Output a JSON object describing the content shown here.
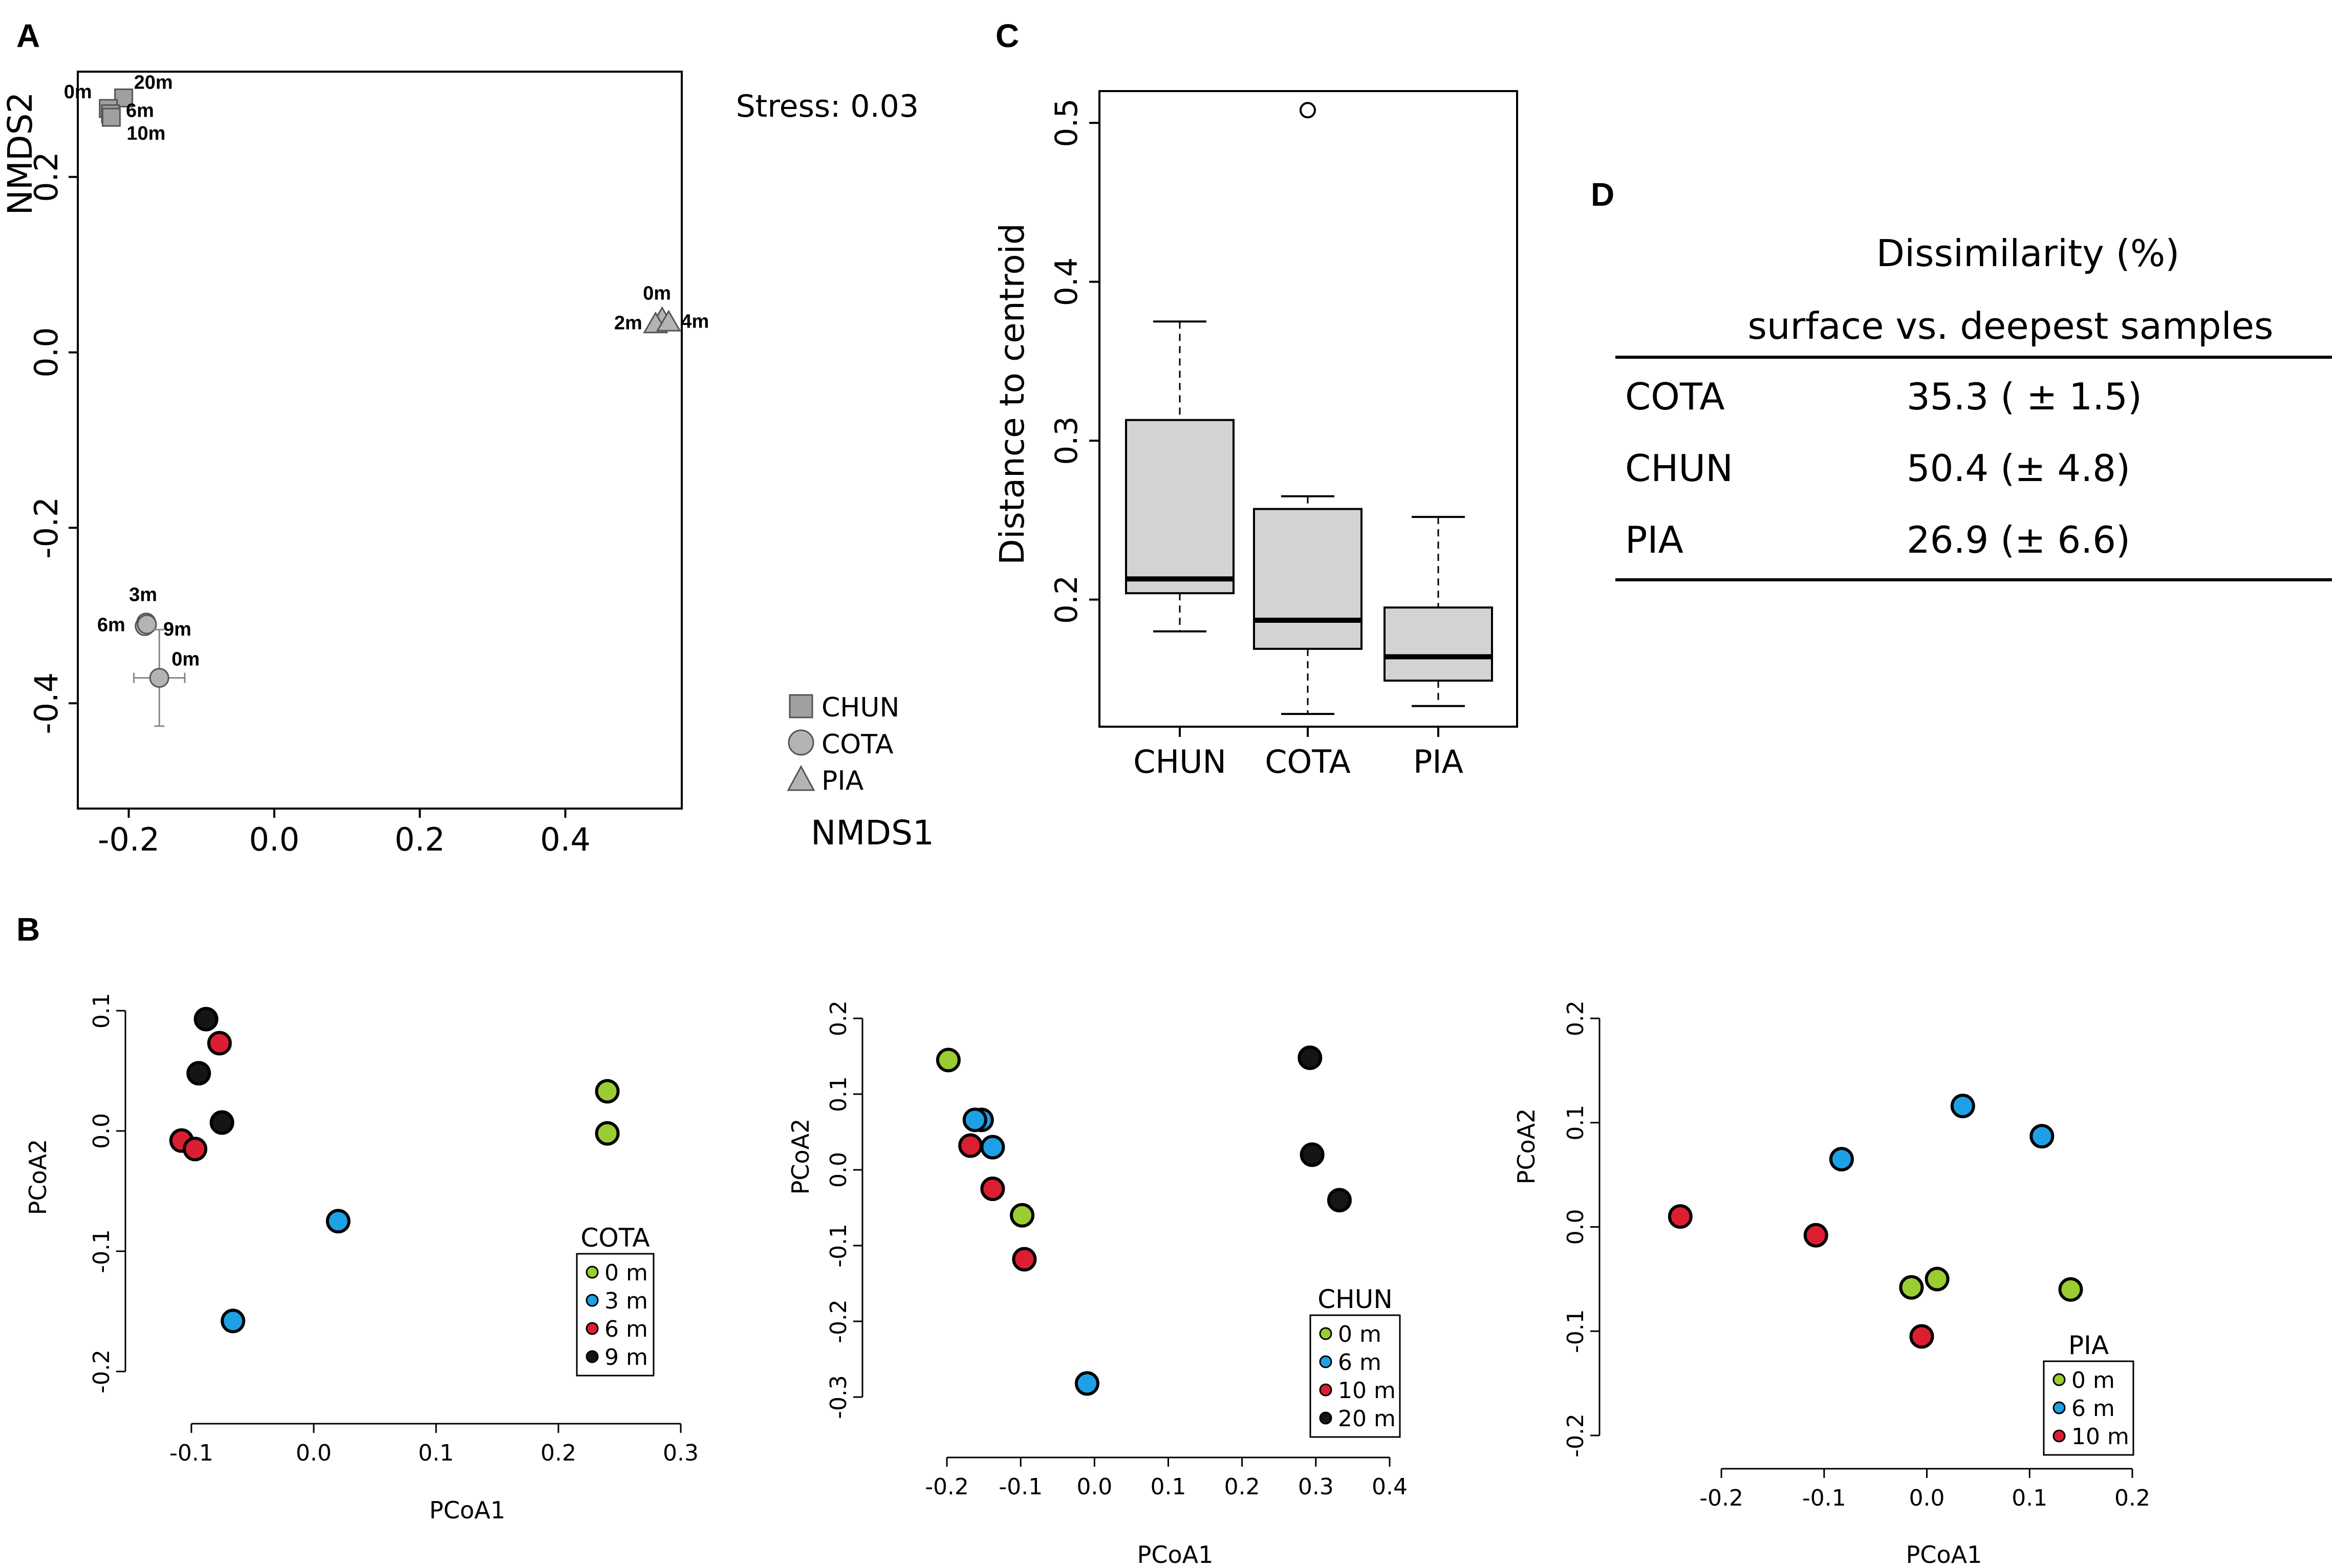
{
  "colors": {
    "depth_0": "#9acd32",
    "depth_mid": "#1ea0e6",
    "depth_red": "#dc1e32",
    "depth_deep": "#151515",
    "marker_gray": "#b4b4b4",
    "box_fill": "#d3d3d3"
  },
  "panels": {
    "A": {
      "letter": "A"
    },
    "B": {
      "letter": "B"
    },
    "C": {
      "letter": "C"
    },
    "D": {
      "letter": "D"
    }
  },
  "chart_data": [
    {
      "id": "A",
      "type": "scatter",
      "title": "",
      "xlabel": "NMDS1",
      "ylabel": "NMDS2",
      "xlim": [
        -0.27,
        0.56
      ],
      "ylim": [
        -0.52,
        0.32
      ],
      "xticks": [
        -0.2,
        0.0,
        0.2,
        0.4
      ],
      "xtick_labels": [
        "-0.2",
        "0.0",
        "0.2",
        "0.4"
      ],
      "yticks": [
        -0.4,
        -0.2,
        0.0,
        0.2
      ],
      "ytick_labels": [
        "-0.4",
        "-0.2",
        "0.0",
        "0.2"
      ],
      "annotation": "Stress: 0.03",
      "legend": {
        "placement": "bottom-right",
        "entries": [
          {
            "label": "CHUN",
            "shape": "square"
          },
          {
            "label": "COTA",
            "shape": "circle"
          },
          {
            "label": "PIA",
            "shape": "triangle"
          }
        ]
      },
      "series": [
        {
          "name": "CHUN",
          "shape": "square",
          "points": [
            {
              "label": "20m",
              "x": -0.207,
              "y": 0.29,
              "xerr": 0.006,
              "yerr": 0.006
            },
            {
              "label": "0m",
              "x": -0.228,
              "y": 0.278,
              "xerr": 0.004,
              "yerr": 0.004
            },
            {
              "label": "6m",
              "x": -0.225,
              "y": 0.272,
              "xerr": 0.004,
              "yerr": 0.004
            },
            {
              "label": "10m",
              "x": -0.224,
              "y": 0.268,
              "xerr": 0.004,
              "yerr": 0.004
            }
          ]
        },
        {
          "name": "COTA",
          "shape": "circle",
          "points": [
            {
              "label": "3m",
              "x": -0.176,
              "y": -0.308,
              "xerr": 0.006,
              "yerr": 0.008
            },
            {
              "label": "6m",
              "x": -0.178,
              "y": -0.312,
              "xerr": 0.005,
              "yerr": 0.006
            },
            {
              "label": "9m",
              "x": -0.175,
              "y": -0.31,
              "xerr": 0.004,
              "yerr": 0.005
            },
            {
              "label": "0m",
              "x": -0.158,
              "y": -0.371,
              "xerr": 0.035,
              "yerr": 0.055
            }
          ]
        },
        {
          "name": "PIA",
          "shape": "triangle",
          "points": [
            {
              "label": "0m",
              "x": 0.533,
              "y": 0.038,
              "xerr": 0.005,
              "yerr": 0.005
            },
            {
              "label": "2m",
              "x": 0.524,
              "y": 0.032,
              "xerr": 0.004,
              "yerr": 0.004
            },
            {
              "label": "4m",
              "x": 0.542,
              "y": 0.034,
              "xerr": 0.004,
              "yerr": 0.004
            }
          ]
        }
      ]
    },
    {
      "id": "B1",
      "type": "scatter",
      "xlabel": "PCoA1",
      "ylabel": "PCoA2",
      "xlim": [
        -0.11,
        0.3
      ],
      "ylim": [
        -0.2,
        0.1
      ],
      "xticks": [
        -0.1,
        0.0,
        0.1,
        0.2,
        0.3
      ],
      "xtick_labels": [
        "-0.1",
        "0.0",
        "0.1",
        "0.2",
        "0.3"
      ],
      "yticks": [
        -0.2,
        -0.1,
        0.0,
        0.1
      ],
      "ytick_labels": [
        "-0.2",
        "-0.1",
        "0.0",
        "0.1"
      ],
      "legend": {
        "title": "COTA",
        "placement": "bottom-right",
        "entries": [
          "0 m",
          "3 m",
          "6 m",
          "9 m"
        ]
      },
      "series": [
        {
          "name": "0 m",
          "color": "green",
          "points": [
            [
              0.24,
              0.033
            ],
            [
              0.24,
              -0.002
            ]
          ]
        },
        {
          "name": "3 m",
          "color": "blue",
          "points": [
            [
              0.02,
              -0.075
            ],
            [
              -0.066,
              -0.158
            ]
          ]
        },
        {
          "name": "6 m",
          "color": "red",
          "points": [
            [
              -0.077,
              0.073
            ],
            [
              -0.108,
              -0.008
            ],
            [
              -0.097,
              -0.015
            ]
          ]
        },
        {
          "name": "9 m",
          "color": "black",
          "points": [
            [
              -0.088,
              0.093
            ],
            [
              -0.094,
              0.048
            ],
            [
              -0.075,
              0.007
            ]
          ]
        }
      ]
    },
    {
      "id": "B2",
      "type": "scatter",
      "xlabel": "PCoA1",
      "ylabel": "PCoA2",
      "xlim": [
        -0.2,
        0.4
      ],
      "ylim": [
        -0.3,
        0.2
      ],
      "xticks": [
        -0.2,
        -0.1,
        0.0,
        0.1,
        0.2,
        0.3,
        0.4
      ],
      "xtick_labels": [
        "-0.2",
        "-0.1",
        "0.0",
        "0.1",
        "0.2",
        "0.3",
        "0.4"
      ],
      "yticks": [
        -0.3,
        -0.2,
        -0.1,
        0.0,
        0.1,
        0.2
      ],
      "ytick_labels": [
        "-0.3",
        "-0.2",
        "-0.1",
        "0.0",
        "0.1",
        "0.2"
      ],
      "legend": {
        "title": "CHUN",
        "placement": "bottom-right",
        "entries": [
          "0 m",
          "6 m",
          "10 m",
          "20 m"
        ]
      },
      "series": [
        {
          "name": "0 m",
          "color": "green",
          "points": [
            [
              -0.198,
              0.145
            ],
            [
              -0.098,
              -0.06
            ]
          ]
        },
        {
          "name": "6 m",
          "color": "blue",
          "points": [
            [
              -0.153,
              0.066
            ],
            [
              -0.162,
              0.066
            ],
            [
              -0.138,
              0.03
            ],
            [
              -0.01,
              -0.282
            ]
          ]
        },
        {
          "name": "10 m",
          "color": "red",
          "points": [
            [
              -0.168,
              0.032
            ],
            [
              -0.138,
              -0.025
            ],
            [
              -0.095,
              -0.118
            ]
          ]
        },
        {
          "name": "20 m",
          "color": "black",
          "points": [
            [
              0.292,
              0.148
            ],
            [
              0.295,
              0.02
            ],
            [
              0.332,
              -0.04
            ]
          ]
        }
      ]
    },
    {
      "id": "B3",
      "type": "scatter",
      "xlabel": "PCoA1",
      "ylabel": "PCoA2",
      "xlim": [
        -0.22,
        0.2
      ],
      "ylim": [
        -0.2,
        0.2
      ],
      "xticks": [
        -0.2,
        -0.1,
        0.0,
        0.1,
        0.2
      ],
      "xtick_labels": [
        "-0.2",
        "-0.1",
        "0.0",
        "0.1",
        "0.2"
      ],
      "yticks": [
        -0.2,
        -0.1,
        0.0,
        0.1,
        0.2
      ],
      "ytick_labels": [
        "-0.2",
        "-0.1",
        "0.0",
        "0.1",
        "0.2"
      ],
      "legend": {
        "title": "PIA",
        "placement": "bottom-right",
        "entries": [
          "0 m",
          "6 m",
          "10 m"
        ]
      },
      "series": [
        {
          "name": "0 m",
          "color": "green",
          "points": [
            [
              -0.015,
              -0.058
            ],
            [
              0.01,
              -0.05
            ],
            [
              0.14,
              -0.06
            ]
          ]
        },
        {
          "name": "6 m",
          "color": "blue",
          "points": [
            [
              -0.083,
              0.065
            ],
            [
              0.035,
              0.116
            ],
            [
              0.112,
              0.087
            ]
          ]
        },
        {
          "name": "10 m",
          "color": "red",
          "points": [
            [
              -0.24,
              0.01
            ],
            [
              -0.108,
              -0.008
            ],
            [
              -0.005,
              -0.105
            ]
          ]
        }
      ]
    },
    {
      "id": "C",
      "type": "box",
      "title": "",
      "xlabel": "",
      "ylabel": "Distance to centroid",
      "ylim": [
        0.12,
        0.52
      ],
      "yticks": [
        0.2,
        0.3,
        0.4,
        0.5
      ],
      "ytick_labels": [
        "0.2",
        "0.3",
        "0.4",
        "0.5"
      ],
      "categories": [
        "CHUN",
        "COTA",
        "PIA"
      ],
      "boxes": [
        {
          "name": "CHUN",
          "min": 0.18,
          "q1": 0.204,
          "median": 0.213,
          "q3": 0.313,
          "max": 0.375,
          "outliers": []
        },
        {
          "name": "COTA",
          "min": 0.128,
          "q1": 0.169,
          "median": 0.187,
          "q3": 0.257,
          "max": 0.265,
          "outliers": [
            0.508
          ]
        },
        {
          "name": "PIA",
          "min": 0.133,
          "q1": 0.149,
          "median": 0.164,
          "q3": 0.195,
          "max": 0.252,
          "outliers": []
        }
      ]
    }
  ],
  "table_d": {
    "title": "Dissimilarity (%)",
    "subtitle": "surface vs. deepest samples",
    "rows": [
      {
        "site": "COTA",
        "value": "35.3 ( ± 1.5)"
      },
      {
        "site": "CHUN",
        "value": "50.4 (± 4.8)"
      },
      {
        "site": "PIA",
        "value": "26.9 (± 6.6)"
      }
    ]
  }
}
